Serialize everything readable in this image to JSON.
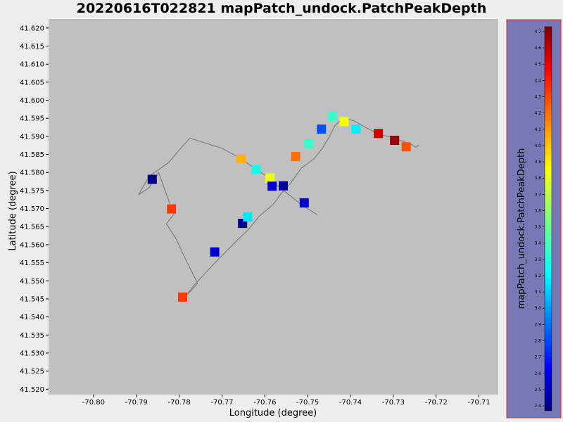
{
  "chart_data": {
    "type": "scatter",
    "title": "20220616T022821 mapPatch_undock.PatchPeakDepth",
    "xlabel": "Longitude (degree)",
    "ylabel": "Latitude (degree)",
    "colorbar_label": "mapPatch_undock.PatchPeakDepth",
    "xlim": [
      -70.8105,
      -70.7055
    ],
    "ylim": [
      41.5185,
      41.6225
    ],
    "xticks": [
      -70.8,
      -70.79,
      -70.78,
      -70.77,
      -70.76,
      -70.75,
      -70.74,
      -70.73,
      -70.72,
      -70.71
    ],
    "xtick_labels": [
      "-70.80",
      "-70.79",
      "-70.78",
      "-70.77",
      "-70.76",
      "-70.75",
      "-70.74",
      "-70.73",
      "-70.72",
      "-70.71"
    ],
    "yticks": [
      41.52,
      41.525,
      41.53,
      41.535,
      41.54,
      41.545,
      41.55,
      41.555,
      41.56,
      41.565,
      41.57,
      41.575,
      41.58,
      41.585,
      41.59,
      41.595,
      41.6,
      41.605,
      41.61,
      41.615,
      41.62
    ],
    "ytick_labels": [
      "41.520",
      "41.525",
      "41.530",
      "41.535",
      "41.540",
      "41.545",
      "41.550",
      "41.555",
      "41.560",
      "41.565",
      "41.570",
      "41.575",
      "41.580",
      "41.585",
      "41.590",
      "41.595",
      "41.600",
      "41.605",
      "41.610",
      "41.615",
      "41.620"
    ],
    "colorbar_range": [
      2.37,
      4.73
    ],
    "colorbar_ticks": [
      2.4,
      2.5,
      2.6,
      2.7,
      2.8,
      2.9,
      3.0,
      3.1,
      3.2,
      3.3,
      3.4,
      3.5,
      3.6,
      3.7,
      3.8,
      3.9,
      4.0,
      4.1,
      4.2,
      4.3,
      4.4,
      4.5,
      4.6,
      4.7
    ],
    "colorbar_tick_labels": [
      "2.4",
      "2.5",
      "2.6",
      "2.7",
      "2.8",
      "2.9",
      "3.0",
      "3.1",
      "3.2",
      "3.3",
      "3.4",
      "3.5",
      "3.6",
      "3.7",
      "3.8",
      "3.9",
      "4.0",
      "4.1",
      "4.2",
      "4.3",
      "4.4",
      "4.5",
      "4.6",
      "4.7"
    ],
    "track": [
      [
        -70.7478,
        41.5683
      ],
      [
        -70.7511,
        41.5708
      ],
      [
        -70.755,
        41.5744
      ],
      [
        -70.7576,
        41.5768
      ],
      [
        -70.7588,
        41.5784
      ],
      [
        -70.762,
        41.5808
      ],
      [
        -70.7655,
        41.5838
      ],
      [
        -70.77,
        41.5867
      ],
      [
        -70.7775,
        41.5895
      ],
      [
        -70.78,
        41.5862
      ],
      [
        -70.7825,
        41.5827
      ],
      [
        -70.787,
        41.579
      ],
      [
        -70.7895,
        41.5738
      ],
      [
        -70.787,
        41.5758
      ],
      [
        -70.7848,
        41.58
      ],
      [
        -70.7827,
        41.573
      ],
      [
        -70.7812,
        41.5685
      ],
      [
        -70.783,
        41.5658
      ],
      [
        -70.7808,
        41.5618
      ],
      [
        -70.7785,
        41.556
      ],
      [
        -70.7757,
        41.5493
      ],
      [
        -70.779,
        41.545
      ],
      [
        -70.7765,
        41.5488
      ],
      [
        -70.7718,
        41.5548
      ],
      [
        -70.7665,
        41.5612
      ],
      [
        -70.764,
        41.564
      ],
      [
        -70.7612,
        41.568
      ],
      [
        -70.758,
        41.5712
      ],
      [
        -70.7563,
        41.574
      ],
      [
        -70.754,
        41.577
      ],
      [
        -70.7515,
        41.5812
      ],
      [
        -70.7485,
        41.5838
      ],
      [
        -70.7465,
        41.5868
      ],
      [
        -70.745,
        41.5898
      ],
      [
        -70.7437,
        41.5928
      ],
      [
        -70.7418,
        41.5953
      ],
      [
        -70.739,
        41.5942
      ],
      [
        -70.7365,
        41.5925
      ],
      [
        -70.7332,
        41.5905
      ],
      [
        -70.7305,
        41.5898
      ],
      [
        -70.7275,
        41.5885
      ],
      [
        -70.7258,
        41.5878
      ],
      [
        -70.7248,
        41.587
      ],
      [
        -70.724,
        41.5875
      ]
    ],
    "points": [
      {
        "x": -70.7863,
        "y": 41.5781,
        "v": 2.38
      },
      {
        "x": -70.7818,
        "y": 41.5699,
        "v": 4.3
      },
      {
        "x": -70.7792,
        "y": 41.5455,
        "v": 4.3
      },
      {
        "x": -70.7717,
        "y": 41.558,
        "v": 2.55
      },
      {
        "x": -70.7652,
        "y": 41.5659,
        "v": 2.4
      },
      {
        "x": -70.764,
        "y": 41.5677,
        "v": 3.2
      },
      {
        "x": -70.7655,
        "y": 41.5838,
        "v": 4.02
      },
      {
        "x": -70.762,
        "y": 41.5808,
        "v": 3.3
      },
      {
        "x": -70.7588,
        "y": 41.5785,
        "v": 3.8
      },
      {
        "x": -70.7583,
        "y": 41.5762,
        "v": 2.55
      },
      {
        "x": -70.7557,
        "y": 41.5763,
        "v": 2.45
      },
      {
        "x": -70.7508,
        "y": 41.5716,
        "v": 2.55
      },
      {
        "x": -70.7528,
        "y": 41.5844,
        "v": 4.18
      },
      {
        "x": -70.7497,
        "y": 41.588,
        "v": 3.38
      },
      {
        "x": -70.7468,
        "y": 41.592,
        "v": 2.85
      },
      {
        "x": -70.7442,
        "y": 41.5956,
        "v": 3.38
      },
      {
        "x": -70.7415,
        "y": 41.5941,
        "v": 3.82
      },
      {
        "x": -70.7387,
        "y": 41.592,
        "v": 3.22
      },
      {
        "x": -70.7335,
        "y": 41.5908,
        "v": 4.55
      },
      {
        "x": -70.7297,
        "y": 41.5889,
        "v": 4.68
      },
      {
        "x": -70.727,
        "y": 41.5871,
        "v": 4.25
      }
    ],
    "grid": false,
    "colormap": "jet"
  },
  "colors": {
    "plot_background": "#c0c0c0",
    "colorbar_panel": "#7878b4",
    "colorbar_border": "#cc3333",
    "track_line": "#808080"
  }
}
